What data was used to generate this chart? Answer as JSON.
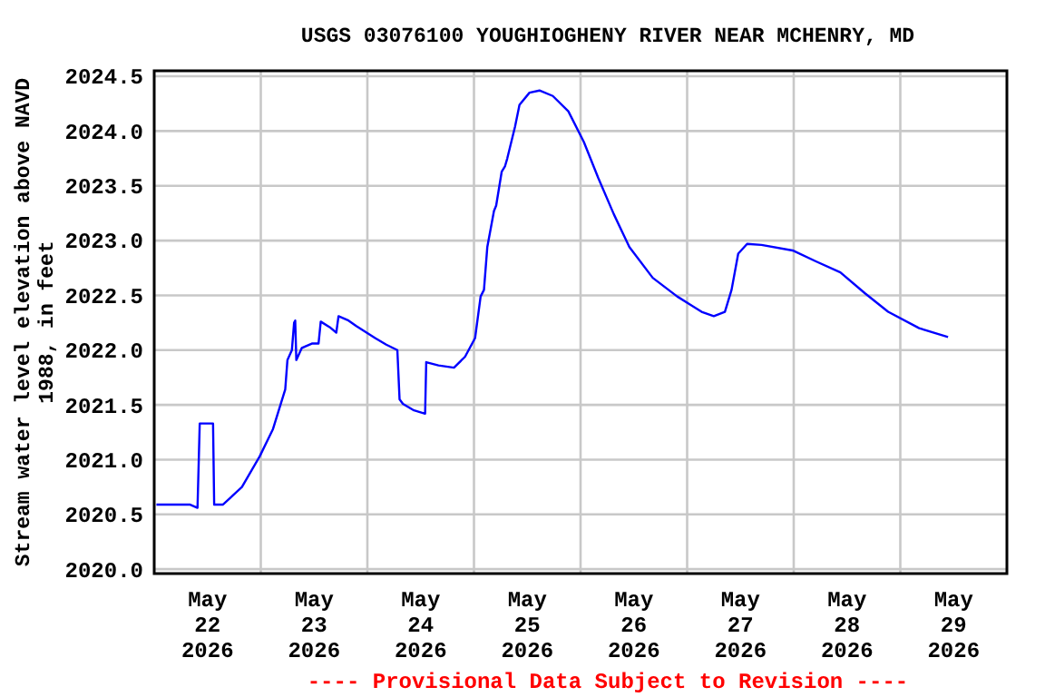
{
  "chart_data": {
    "type": "line",
    "title": "USGS 03076100 YOUGHIOGHENY RIVER NEAR MCHENRY, MD",
    "ylabel": "Stream water level elevation above NAVD 1988, in feet",
    "annotations": [
      "---- Provisional Data Subject to Revision ----"
    ],
    "x": [
      "2026-05-22T00:30",
      "2026-05-22T08:00",
      "2026-05-22T09:45",
      "2026-05-22T10:15",
      "2026-05-22T13:15",
      "2026-05-22T13:30",
      "2026-05-22T15:30",
      "2026-05-22T19:45",
      "2026-05-22T23:45",
      "2026-05-23T02:45",
      "2026-05-23T05:30",
      "2026-05-23T06:00",
      "2026-05-23T07:00",
      "2026-05-23T07:30",
      "2026-05-23T07:45",
      "2026-05-23T08:00",
      "2026-05-23T09:15",
      "2026-05-23T11:30",
      "2026-05-23T13:00",
      "2026-05-23T13:30",
      "2026-05-23T15:30",
      "2026-05-23T17:00",
      "2026-05-23T17:30",
      "2026-05-23T19:45",
      "2026-05-23T21:30",
      "2026-05-24T01:45",
      "2026-05-24T04:15",
      "2026-05-24T06:45",
      "2026-05-24T07:15",
      "2026-05-24T08:00",
      "2026-05-24T10:30",
      "2026-05-24T13:00",
      "2026-05-24T13:15",
      "2026-05-24T16:00",
      "2026-05-24T19:30",
      "2026-05-24T22:00",
      "2026-05-25T00:15",
      "2026-05-25T01:30",
      "2026-05-25T02:15",
      "2026-05-25T03:00",
      "2026-05-25T04:30",
      "2026-05-25T05:00",
      "2026-05-25T06:15",
      "2026-05-25T07:00",
      "2026-05-25T07:30",
      "2026-05-25T09:15",
      "2026-05-25T10:15",
      "2026-05-25T12:30",
      "2026-05-25T14:45",
      "2026-05-25T17:45",
      "2026-05-25T21:15",
      "2026-05-26T00:45",
      "2026-05-26T04:00",
      "2026-05-26T07:30",
      "2026-05-26T11:00",
      "2026-05-26T16:15",
      "2026-05-26T21:45",
      "2026-05-27T03:15",
      "2026-05-27T06:00",
      "2026-05-27T08:30",
      "2026-05-27T10:00",
      "2026-05-27T11:30",
      "2026-05-27T13:30",
      "2026-05-27T16:45",
      "2026-05-27T23:45",
      "2026-05-28T05:00",
      "2026-05-28T10:30",
      "2026-05-28T16:00",
      "2026-05-28T21:15",
      "2026-05-29T04:15",
      "2026-05-29T10:45"
    ],
    "series": [
      {
        "color": "#0000ff",
        "values": [
          2020.59,
          2020.59,
          2020.56,
          2021.33,
          2021.33,
          2020.59,
          2020.59,
          2020.75,
          2021.03,
          2021.28,
          2021.64,
          2021.91,
          2022.0,
          2022.25,
          2022.27,
          2021.91,
          2022.02,
          2022.06,
          2022.06,
          2022.26,
          2022.21,
          2022.16,
          2022.31,
          2022.27,
          2022.22,
          2022.11,
          2022.05,
          2022.0,
          2021.55,
          2021.51,
          2021.45,
          2021.42,
          2021.89,
          2021.86,
          2021.84,
          2021.94,
          2022.11,
          2022.49,
          2022.55,
          2022.94,
          2023.27,
          2023.32,
          2023.63,
          2023.68,
          2023.75,
          2024.04,
          2024.24,
          2024.35,
          2024.37,
          2024.32,
          2024.18,
          2023.9,
          2023.57,
          2023.24,
          2022.94,
          2022.66,
          2022.49,
          2022.35,
          2022.31,
          2022.35,
          2022.55,
          2022.88,
          2022.97,
          2022.96,
          2022.91,
          2022.81,
          2022.71,
          2022.52,
          2022.35,
          2022.2,
          2022.12
        ]
      }
    ],
    "xlim": [
      "2026-05-22T00:00",
      "2026-05-30T00:00"
    ],
    "xticks": [
      {
        "value": "2026-05-22T12:00",
        "label": "May\n22\n2026"
      },
      {
        "value": "2026-05-23T00:00",
        "label": null
      },
      {
        "value": "2026-05-23T12:00",
        "label": "May\n23\n2026"
      },
      {
        "value": "2026-05-24T00:00",
        "label": null
      },
      {
        "value": "2026-05-24T12:00",
        "label": "May\n24\n2026"
      },
      {
        "value": "2026-05-25T00:00",
        "label": null
      },
      {
        "value": "2026-05-25T12:00",
        "label": "May\n25\n2026"
      },
      {
        "value": "2026-05-26T00:00",
        "label": null
      },
      {
        "value": "2026-05-26T12:00",
        "label": "May\n26\n2026"
      },
      {
        "value": "2026-05-27T00:00",
        "label": null
      },
      {
        "value": "2026-05-27T12:00",
        "label": "May\n27\n2026"
      },
      {
        "value": "2026-05-28T00:00",
        "label": null
      },
      {
        "value": "2026-05-28T12:00",
        "label": "May\n28\n2026"
      },
      {
        "value": "2026-05-29T00:00",
        "label": null
      },
      {
        "value": "2026-05-29T12:00",
        "label": "May\n29\n2026"
      }
    ],
    "ylim": [
      2019.96,
      2024.55
    ],
    "yticks": [
      {
        "value": 2020,
        "label": "2020.0"
      },
      {
        "value": 2020.5,
        "label": "2020.5"
      },
      {
        "value": 2021,
        "label": "2021.0"
      },
      {
        "value": 2021.5,
        "label": "2021.5"
      },
      {
        "value": 2022,
        "label": "2022.0"
      },
      {
        "value": 2022.5,
        "label": "2022.5"
      },
      {
        "value": 2023,
        "label": "2023.0"
      },
      {
        "value": 2023.5,
        "label": "2023.5"
      },
      {
        "value": 2024,
        "label": "2024.0"
      },
      {
        "value": 2024.5,
        "label": "2024.5"
      }
    ],
    "grid": true,
    "marker": "none",
    "line_style": "solid"
  }
}
